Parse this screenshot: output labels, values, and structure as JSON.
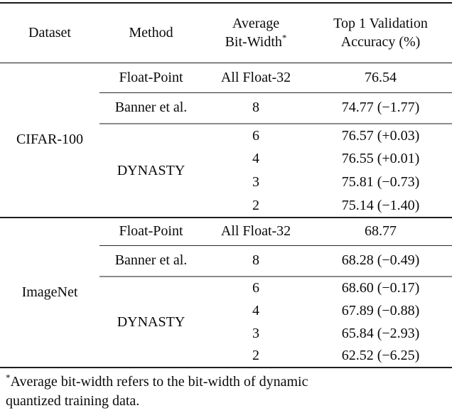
{
  "table": {
    "header": {
      "dataset": "Dataset",
      "method": "Method",
      "bits_line1": "Average",
      "bits_line2": "Bit-Width",
      "bits_sup": "*",
      "acc_line1": "Top 1 Validation",
      "acc_line2": "Accuracy (%)"
    },
    "sections": [
      {
        "dataset": "CIFAR-100",
        "group_method": "DYNASTY",
        "rows": [
          {
            "method": "Float-Point",
            "bits": "All Float-32",
            "acc": "76.54"
          },
          {
            "method": "Banner et al.",
            "bits": "8",
            "acc": "74.77 (−1.77)"
          },
          {
            "bits": "6",
            "acc": "76.57 (+0.03)"
          },
          {
            "bits": "4",
            "acc": "76.55 (+0.01)"
          },
          {
            "bits": "3",
            "acc": "75.81 (−0.73)"
          },
          {
            "bits": "2",
            "acc": "75.14 (−1.40)"
          }
        ]
      },
      {
        "dataset": "ImageNet",
        "group_method": "DYNASTY",
        "rows": [
          {
            "method": "Float-Point",
            "bits": "All Float-32",
            "acc": "68.77"
          },
          {
            "method": "Banner et al.",
            "bits": "8",
            "acc": "68.28 (−0.49)"
          },
          {
            "bits": "6",
            "acc": "68.60 (−0.17)"
          },
          {
            "bits": "4",
            "acc": "67.89 (−0.88)"
          },
          {
            "bits": "3",
            "acc": "65.84 (−2.93)"
          },
          {
            "bits": "2",
            "acc": "62.52 (−6.25)"
          }
        ]
      }
    ],
    "footnote": {
      "marker": "*",
      "line1": "Average bit-width refers to the bit-width of dynamic",
      "line2": "quantized training data."
    }
  },
  "colors": {
    "rule_dark": "#1a1a1a",
    "rule_gray": "#8c8c8c",
    "text": "#0a0a0a",
    "background": "#ffffff"
  }
}
